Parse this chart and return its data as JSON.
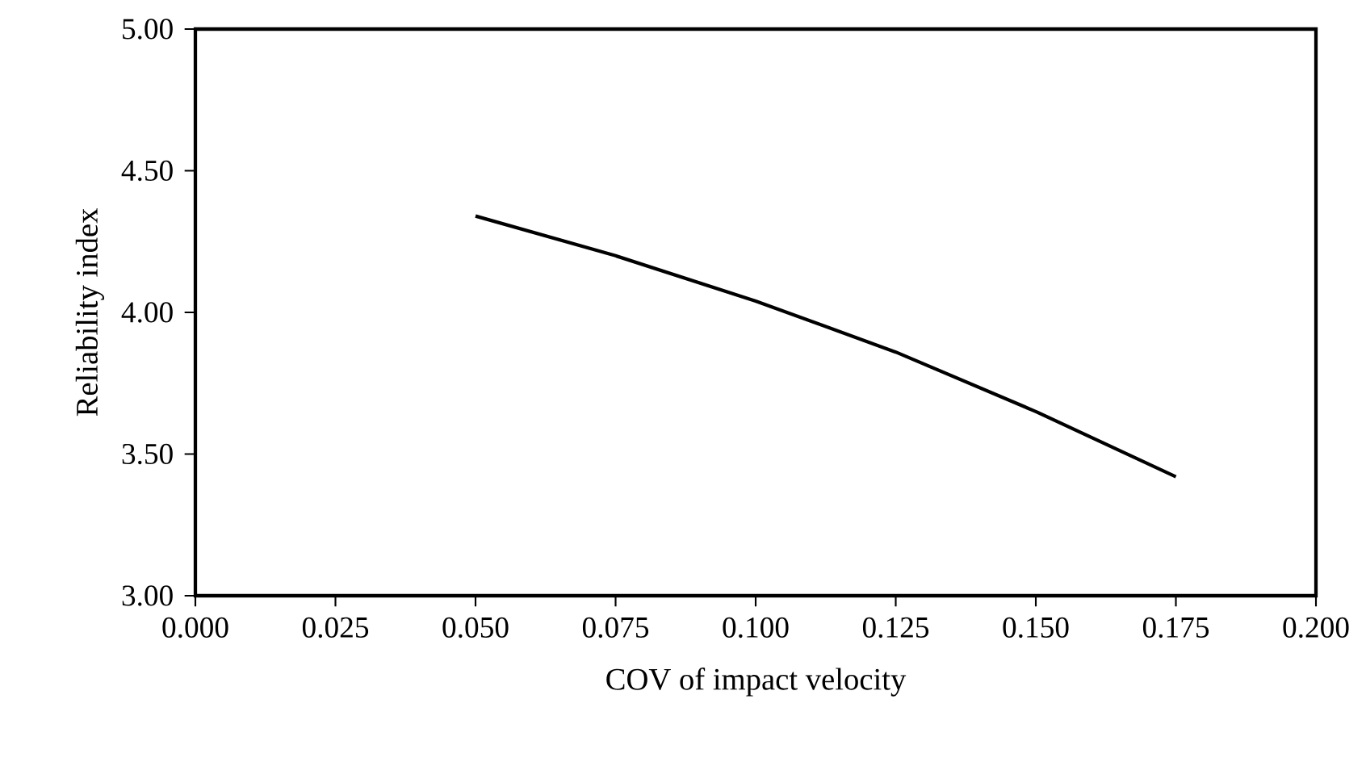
{
  "chart_data": {
    "type": "line",
    "xlabel": "COV of  impact velocity",
    "ylabel": "Reliability index",
    "x": [
      0.05,
      0.075,
      0.1,
      0.125,
      0.15,
      0.175
    ],
    "series": [
      {
        "color": "#000000",
        "values": [
          4.34,
          4.2,
          4.04,
          3.86,
          3.65,
          3.42
        ]
      }
    ],
    "xlim": [
      0.0,
      0.2
    ],
    "ylim": [
      3.0,
      5.0
    ],
    "xticks": [
      {
        "value": 0.0,
        "label": "0.000"
      },
      {
        "value": 0.025,
        "label": "0.025"
      },
      {
        "value": 0.05,
        "label": "0.050"
      },
      {
        "value": 0.075,
        "label": "0.075"
      },
      {
        "value": 0.1,
        "label": "0.100"
      },
      {
        "value": 0.125,
        "label": "0.125"
      },
      {
        "value": 0.15,
        "label": "0.150"
      },
      {
        "value": 0.175,
        "label": "0.175"
      },
      {
        "value": 0.2,
        "label": "0.200"
      }
    ],
    "yticks": [
      {
        "value": 3.0,
        "label": "3.00"
      },
      {
        "value": 3.5,
        "label": "3.50"
      },
      {
        "value": 4.0,
        "label": "4.00"
      },
      {
        "value": 4.5,
        "label": "4.50"
      },
      {
        "value": 5.0,
        "label": "5.00"
      }
    ],
    "marker": "none",
    "line_style": "solid"
  }
}
